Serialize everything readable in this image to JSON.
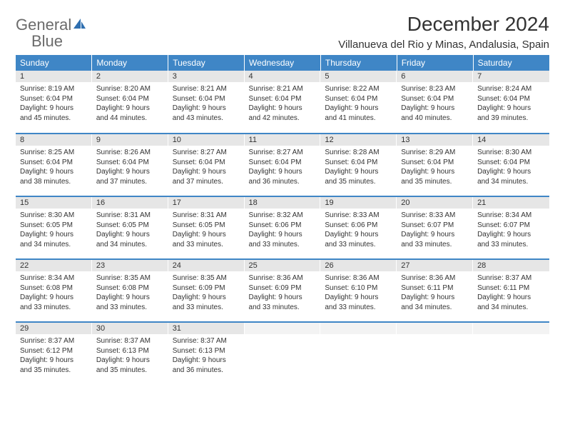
{
  "brand": {
    "word1": "General",
    "word2": "Blue"
  },
  "title": "December 2024",
  "location": "Villanueva del Rio y Minas, Andalusia, Spain",
  "colors": {
    "header_bg": "#3f86c6",
    "header_text": "#ffffff",
    "daynum_bg": "#e6e6e6",
    "row_divider": "#3f86c6",
    "logo_gray": "#6b6b6b",
    "logo_blue": "#2f6fb0",
    "text": "#333333",
    "background": "#ffffff"
  },
  "fonts": {
    "title_pt": 28,
    "location_pt": 15,
    "dayhead_pt": 12,
    "daynum_pt": 11,
    "body_pt": 10
  },
  "day_headers": [
    "Sunday",
    "Monday",
    "Tuesday",
    "Wednesday",
    "Thursday",
    "Friday",
    "Saturday"
  ],
  "weeks": [
    [
      {
        "n": "1",
        "sr": "Sunrise: 8:19 AM",
        "ss": "Sunset: 6:04 PM",
        "d1": "Daylight: 9 hours",
        "d2": "and 45 minutes."
      },
      {
        "n": "2",
        "sr": "Sunrise: 8:20 AM",
        "ss": "Sunset: 6:04 PM",
        "d1": "Daylight: 9 hours",
        "d2": "and 44 minutes."
      },
      {
        "n": "3",
        "sr": "Sunrise: 8:21 AM",
        "ss": "Sunset: 6:04 PM",
        "d1": "Daylight: 9 hours",
        "d2": "and 43 minutes."
      },
      {
        "n": "4",
        "sr": "Sunrise: 8:21 AM",
        "ss": "Sunset: 6:04 PM",
        "d1": "Daylight: 9 hours",
        "d2": "and 42 minutes."
      },
      {
        "n": "5",
        "sr": "Sunrise: 8:22 AM",
        "ss": "Sunset: 6:04 PM",
        "d1": "Daylight: 9 hours",
        "d2": "and 41 minutes."
      },
      {
        "n": "6",
        "sr": "Sunrise: 8:23 AM",
        "ss": "Sunset: 6:04 PM",
        "d1": "Daylight: 9 hours",
        "d2": "and 40 minutes."
      },
      {
        "n": "7",
        "sr": "Sunrise: 8:24 AM",
        "ss": "Sunset: 6:04 PM",
        "d1": "Daylight: 9 hours",
        "d2": "and 39 minutes."
      }
    ],
    [
      {
        "n": "8",
        "sr": "Sunrise: 8:25 AM",
        "ss": "Sunset: 6:04 PM",
        "d1": "Daylight: 9 hours",
        "d2": "and 38 minutes."
      },
      {
        "n": "9",
        "sr": "Sunrise: 8:26 AM",
        "ss": "Sunset: 6:04 PM",
        "d1": "Daylight: 9 hours",
        "d2": "and 37 minutes."
      },
      {
        "n": "10",
        "sr": "Sunrise: 8:27 AM",
        "ss": "Sunset: 6:04 PM",
        "d1": "Daylight: 9 hours",
        "d2": "and 37 minutes."
      },
      {
        "n": "11",
        "sr": "Sunrise: 8:27 AM",
        "ss": "Sunset: 6:04 PM",
        "d1": "Daylight: 9 hours",
        "d2": "and 36 minutes."
      },
      {
        "n": "12",
        "sr": "Sunrise: 8:28 AM",
        "ss": "Sunset: 6:04 PM",
        "d1": "Daylight: 9 hours",
        "d2": "and 35 minutes."
      },
      {
        "n": "13",
        "sr": "Sunrise: 8:29 AM",
        "ss": "Sunset: 6:04 PM",
        "d1": "Daylight: 9 hours",
        "d2": "and 35 minutes."
      },
      {
        "n": "14",
        "sr": "Sunrise: 8:30 AM",
        "ss": "Sunset: 6:04 PM",
        "d1": "Daylight: 9 hours",
        "d2": "and 34 minutes."
      }
    ],
    [
      {
        "n": "15",
        "sr": "Sunrise: 8:30 AM",
        "ss": "Sunset: 6:05 PM",
        "d1": "Daylight: 9 hours",
        "d2": "and 34 minutes."
      },
      {
        "n": "16",
        "sr": "Sunrise: 8:31 AM",
        "ss": "Sunset: 6:05 PM",
        "d1": "Daylight: 9 hours",
        "d2": "and 34 minutes."
      },
      {
        "n": "17",
        "sr": "Sunrise: 8:31 AM",
        "ss": "Sunset: 6:05 PM",
        "d1": "Daylight: 9 hours",
        "d2": "and 33 minutes."
      },
      {
        "n": "18",
        "sr": "Sunrise: 8:32 AM",
        "ss": "Sunset: 6:06 PM",
        "d1": "Daylight: 9 hours",
        "d2": "and 33 minutes."
      },
      {
        "n": "19",
        "sr": "Sunrise: 8:33 AM",
        "ss": "Sunset: 6:06 PM",
        "d1": "Daylight: 9 hours",
        "d2": "and 33 minutes."
      },
      {
        "n": "20",
        "sr": "Sunrise: 8:33 AM",
        "ss": "Sunset: 6:07 PM",
        "d1": "Daylight: 9 hours",
        "d2": "and 33 minutes."
      },
      {
        "n": "21",
        "sr": "Sunrise: 8:34 AM",
        "ss": "Sunset: 6:07 PM",
        "d1": "Daylight: 9 hours",
        "d2": "and 33 minutes."
      }
    ],
    [
      {
        "n": "22",
        "sr": "Sunrise: 8:34 AM",
        "ss": "Sunset: 6:08 PM",
        "d1": "Daylight: 9 hours",
        "d2": "and 33 minutes."
      },
      {
        "n": "23",
        "sr": "Sunrise: 8:35 AM",
        "ss": "Sunset: 6:08 PM",
        "d1": "Daylight: 9 hours",
        "d2": "and 33 minutes."
      },
      {
        "n": "24",
        "sr": "Sunrise: 8:35 AM",
        "ss": "Sunset: 6:09 PM",
        "d1": "Daylight: 9 hours",
        "d2": "and 33 minutes."
      },
      {
        "n": "25",
        "sr": "Sunrise: 8:36 AM",
        "ss": "Sunset: 6:09 PM",
        "d1": "Daylight: 9 hours",
        "d2": "and 33 minutes."
      },
      {
        "n": "26",
        "sr": "Sunrise: 8:36 AM",
        "ss": "Sunset: 6:10 PM",
        "d1": "Daylight: 9 hours",
        "d2": "and 33 minutes."
      },
      {
        "n": "27",
        "sr": "Sunrise: 8:36 AM",
        "ss": "Sunset: 6:11 PM",
        "d1": "Daylight: 9 hours",
        "d2": "and 34 minutes."
      },
      {
        "n": "28",
        "sr": "Sunrise: 8:37 AM",
        "ss": "Sunset: 6:11 PM",
        "d1": "Daylight: 9 hours",
        "d2": "and 34 minutes."
      }
    ],
    [
      {
        "n": "29",
        "sr": "Sunrise: 8:37 AM",
        "ss": "Sunset: 6:12 PM",
        "d1": "Daylight: 9 hours",
        "d2": "and 35 minutes."
      },
      {
        "n": "30",
        "sr": "Sunrise: 8:37 AM",
        "ss": "Sunset: 6:13 PM",
        "d1": "Daylight: 9 hours",
        "d2": "and 35 minutes."
      },
      {
        "n": "31",
        "sr": "Sunrise: 8:37 AM",
        "ss": "Sunset: 6:13 PM",
        "d1": "Daylight: 9 hours",
        "d2": "and 36 minutes."
      },
      null,
      null,
      null,
      null
    ]
  ]
}
